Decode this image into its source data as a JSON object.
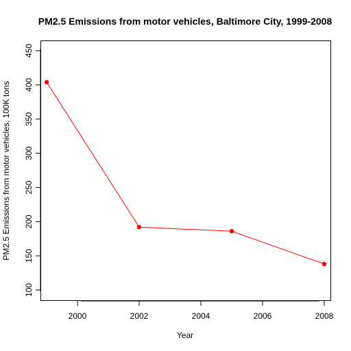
{
  "chart_data": {
    "type": "line",
    "title": "PM2.5 Emissions from motor vehicles, Baltimore City, 1999-2008",
    "xlabel": "Year",
    "ylabel": "PM2.5 Emissions from motor vehicles, 100K tons",
    "xlim": [
      1998.8,
      2008.2
    ],
    "ylim": [
      85,
      465
    ],
    "x_ticks": [
      2000,
      2002,
      2004,
      2006,
      2008
    ],
    "y_ticks": [
      100,
      150,
      200,
      250,
      300,
      350,
      400,
      450
    ],
    "grid": false,
    "legend": "none",
    "series": [
      {
        "x": [
          1999,
          2002,
          2005,
          2008
        ],
        "values": [
          404,
          192,
          186,
          138
        ],
        "color": "#ff0000"
      }
    ]
  }
}
